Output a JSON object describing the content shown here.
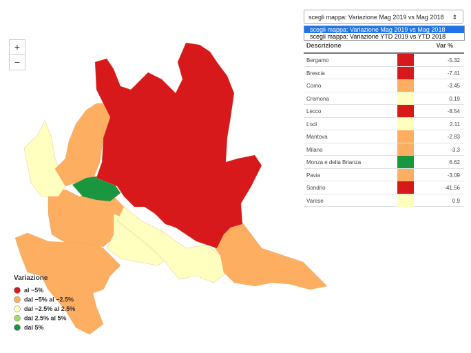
{
  "map_controls": {
    "zoom_in": "+",
    "zoom_out": "−"
  },
  "selector": {
    "current": "scegli mappa: Variazione Mag 2019 vs Mag 2018",
    "options": [
      "scegli mappa: Variazione Mag 2019 vs Mag 2018",
      "scegli mappa: Variazione YTD 2019 vs YTD 2018"
    ]
  },
  "table": {
    "headers": [
      "Descrizione",
      "Var %"
    ],
    "rows": [
      {
        "name": "Bergamo",
        "color": "#d7191c",
        "value": -5.32
      },
      {
        "name": "Brescia",
        "color": "#d7191c",
        "value": -7.41
      },
      {
        "name": "Como",
        "color": "#fdae61",
        "value": -3.45
      },
      {
        "name": "Cremona",
        "color": "#ffffbf",
        "value": 0.19
      },
      {
        "name": "Lecco",
        "color": "#d7191c",
        "value": -8.54
      },
      {
        "name": "Lodi",
        "color": "#ffffbf",
        "value": 2.11
      },
      {
        "name": "Mantova",
        "color": "#fdae61",
        "value": -2.83
      },
      {
        "name": "Milano",
        "color": "#fdae61",
        "value": -3.3
      },
      {
        "name": "Monza e della Brianza",
        "color": "#1a9641",
        "value": 6.62
      },
      {
        "name": "Pavia",
        "color": "#fdae61",
        "value": -3.09
      },
      {
        "name": "Sondrio",
        "color": "#d7191c",
        "value": -41.56
      },
      {
        "name": "Varese",
        "color": "#ffffbf",
        "value": 0.9
      }
    ]
  },
  "legend": {
    "title": "Variazione",
    "items": [
      {
        "label": "al −5%",
        "color": "#d7191c"
      },
      {
        "label": "dal −5% al −2.5%",
        "color": "#fdae61"
      },
      {
        "label": "dal −2.5% al 2.5%",
        "color": "#ffffbf"
      },
      {
        "label": "dal 2.5% al 5%",
        "color": "#a6d96a"
      },
      {
        "label": "dal 5%",
        "color": "#1a9641"
      }
    ]
  }
}
